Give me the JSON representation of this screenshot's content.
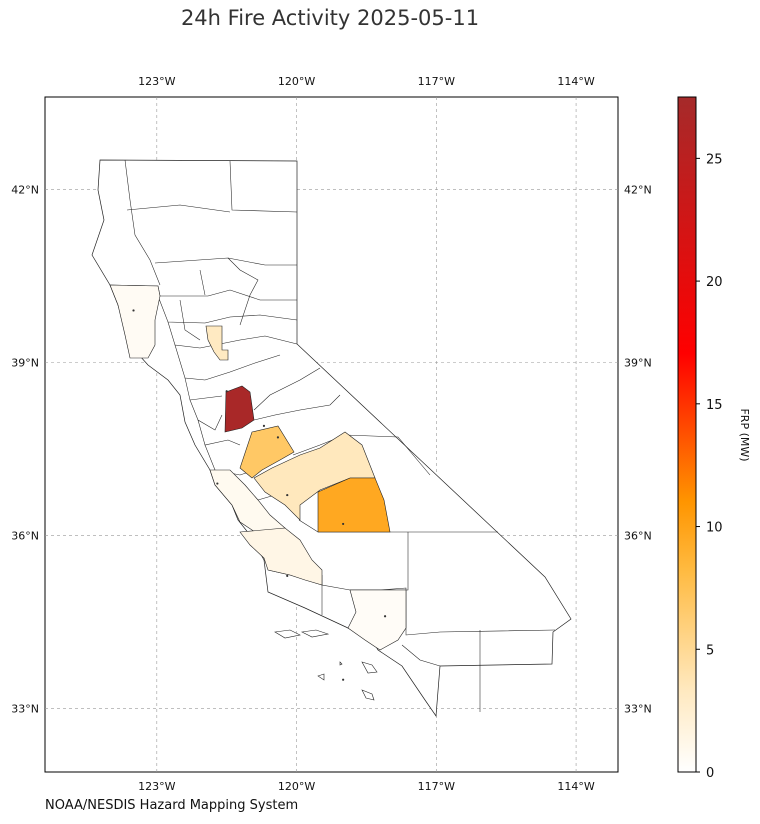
{
  "title": "24h Fire Activity 2025-05-11",
  "source": "NOAA/NESDIS Hazard Mapping System",
  "chart_data": {
    "type": "choropleth",
    "title": "24h Fire Activity 2025-05-11",
    "lon_range": [
      -125.4,
      -113.1
    ],
    "lat_range": [
      31.9,
      43.6
    ],
    "lon_ticks": [
      "123°W",
      "120°W",
      "117°W",
      "114°W"
    ],
    "lon_tick_values": [
      -123,
      -120,
      -117,
      -114
    ],
    "lat_ticks": [
      "42°N",
      "39°N",
      "36°N",
      "33°N"
    ],
    "lat_tick_values": [
      42,
      39,
      36,
      33
    ],
    "grid": true,
    "colorbar": {
      "label": "FRP (MW)",
      "range": [
        0,
        27.5
      ],
      "ticks": [
        0,
        5,
        10,
        15,
        20,
        25
      ],
      "colors": [
        "#ffffff",
        "#ffe0a0",
        "#ffb030",
        "#ff9500",
        "#ff0000",
        "#b22222"
      ]
    },
    "regions": [
      {
        "id": "mendocino",
        "frp": 0.6
      },
      {
        "id": "yuba",
        "frp": 3.2
      },
      {
        "id": "sacramento",
        "frp": 27.0
      },
      {
        "id": "stanislaus",
        "frp": 6.8
      },
      {
        "id": "fresno",
        "frp": 3.4
      },
      {
        "id": "tulare",
        "frp": 9.6
      },
      {
        "id": "monterey",
        "frp": 0.8
      },
      {
        "id": "san-luis-obispo",
        "frp": 1.3
      },
      {
        "id": "los-angeles",
        "frp": 0.4
      }
    ],
    "detections": [
      [
        -123.5,
        39.9
      ],
      [
        -121.5,
        38.5
      ],
      [
        -120.7,
        37.9
      ],
      [
        -120.4,
        37.7
      ],
      [
        -120.2,
        36.7
      ],
      [
        -119.0,
        36.2
      ],
      [
        -121.7,
        36.9
      ],
      [
        -120.2,
        35.3
      ],
      [
        -118.1,
        34.6
      ],
      [
        -119.0,
        33.5
      ]
    ]
  }
}
